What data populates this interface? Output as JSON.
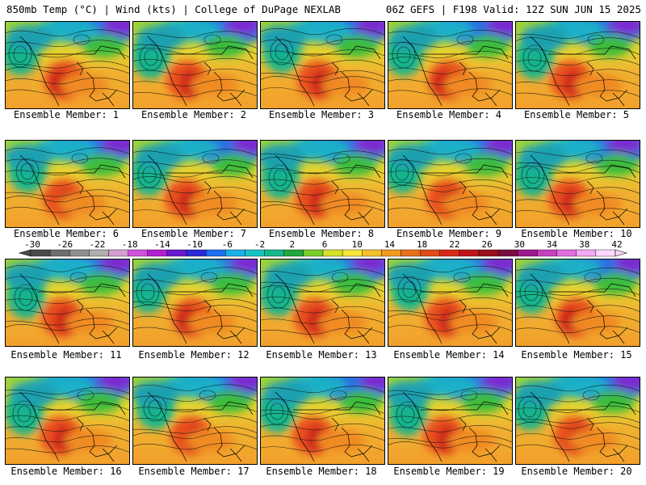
{
  "header": {
    "left": "850mb Temp (°C) | Wind (kts) | College of DuPage NEXLAB",
    "right": "06Z GEFS | F198 Valid: 12Z SUN JUN 15 2025"
  },
  "members": [
    {
      "label": "Ensemble Member: 1"
    },
    {
      "label": "Ensemble Member: 2"
    },
    {
      "label": "Ensemble Member: 3"
    },
    {
      "label": "Ensemble Member: 4"
    },
    {
      "label": "Ensemble Member: 5"
    },
    {
      "label": "Ensemble Member: 6"
    },
    {
      "label": "Ensemble Member: 7"
    },
    {
      "label": "Ensemble Member: 8"
    },
    {
      "label": "Ensemble Member: 9"
    },
    {
      "label": "Ensemble Member: 10"
    },
    {
      "label": "Ensemble Member: 11"
    },
    {
      "label": "Ensemble Member: 12"
    },
    {
      "label": "Ensemble Member: 13"
    },
    {
      "label": "Ensemble Member: 14"
    },
    {
      "label": "Ensemble Member: 15"
    },
    {
      "label": "Ensemble Member: 16"
    },
    {
      "label": "Ensemble Member: 17"
    },
    {
      "label": "Ensemble Member: 18"
    },
    {
      "label": "Ensemble Member: 19"
    },
    {
      "label": "Ensemble Member: 20"
    }
  ],
  "colorbar": {
    "ticks": [
      "-30",
      "-26",
      "-22",
      "-18",
      "-14",
      "-10",
      "-6",
      "-2",
      "2",
      "6",
      "10",
      "14",
      "18",
      "22",
      "26",
      "30",
      "34",
      "38",
      "42"
    ],
    "colors": [
      "#4a4a4a",
      "#6e6e6e",
      "#8e8e8e",
      "#b0b0b0",
      "#d4a0d4",
      "#d050e0",
      "#b020d0",
      "#6a1ad0",
      "#2a2ad8",
      "#1f6ff0",
      "#1ab0e8",
      "#17c4c4",
      "#15b88a",
      "#1fa83a",
      "#7acd2a",
      "#d4e02a",
      "#f7e83a",
      "#f5c02a",
      "#f09a20",
      "#e87018",
      "#e04a18",
      "#d82a1a",
      "#c0141a",
      "#98101a",
      "#7a0c40",
      "#a01890",
      "#c840c0",
      "#e070e0",
      "#f2a8f2",
      "#ffd6ff"
    ]
  }
}
